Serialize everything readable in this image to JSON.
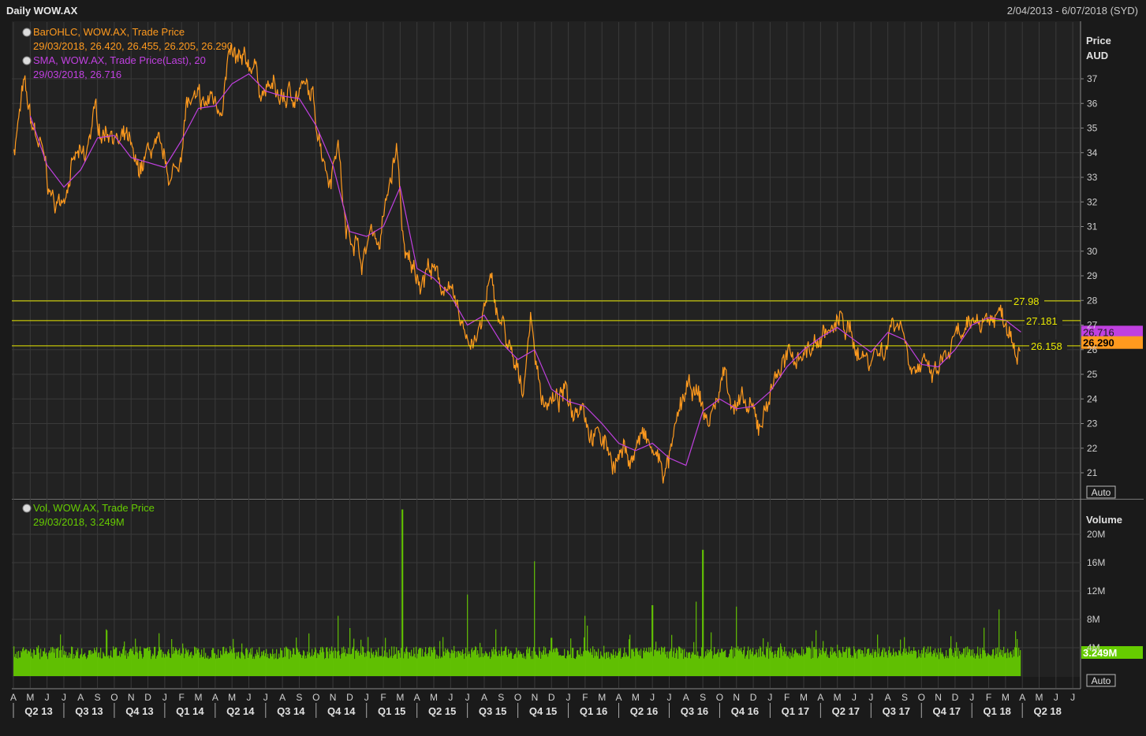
{
  "header": {
    "title": "Daily WOW.AX",
    "range": "2/04/2013 - 6/07/2018 (SYD)"
  },
  "colors": {
    "price": "#ff9a1e",
    "sma": "#c040e0",
    "volume": "#66cc00",
    "hline": "#e8e800",
    "background": "#222222",
    "grid": "#3a3a3a"
  },
  "price_panel": {
    "legend": [
      {
        "line1": "BarOHLC, WOW.AX, Trade Price",
        "line2": "29/03/2018, 26.420, 26.455, 26.205, 26.290",
        "color": "#ff9a1e"
      },
      {
        "line1": "SMA, WOW.AX, Trade Price(Last),  20",
        "line2": "29/03/2018, 26.716",
        "color": "#c040e0"
      }
    ],
    "axis_title": [
      "Price",
      "AUD"
    ],
    "auto_label": "Auto",
    "yticks": [
      21,
      22,
      23,
      24,
      25,
      26,
      27,
      28,
      29,
      30,
      31,
      32,
      33,
      34,
      35,
      36,
      37
    ],
    "hlines": [
      {
        "label": "27.98",
        "value": 27.98
      },
      {
        "label": "27.181",
        "value": 27.181
      },
      {
        "label": "26.158",
        "value": 26.158
      }
    ],
    "tags": [
      {
        "label": "26.716",
        "value": 26.716,
        "bg": "#c040e0",
        "fg": "#1a1a1a"
      },
      {
        "label": "26.290",
        "value": 26.29,
        "bg": "#ff9a1e",
        "fg": "#000000"
      }
    ]
  },
  "volume_panel": {
    "legend": [
      {
        "line1": "Vol, WOW.AX, Trade Price",
        "line2": "29/03/2018, 3.249M",
        "color": "#66cc00"
      }
    ],
    "axis_title": "Volume",
    "auto_label": "Auto",
    "yticks": [
      {
        "label": "4M",
        "value": 4
      },
      {
        "label": "8M",
        "value": 8
      },
      {
        "label": "12M",
        "value": 12
      },
      {
        "label": "16M",
        "value": 16
      },
      {
        "label": "20M",
        "value": 20
      }
    ],
    "tag": {
      "label": "3.249M",
      "value": 3.249
    }
  },
  "xaxis": {
    "months": [
      "A",
      "M",
      "J",
      "J",
      "A",
      "S",
      "O",
      "N",
      "D",
      "J",
      "F",
      "M",
      "A",
      "M",
      "J",
      "J",
      "A",
      "S",
      "O",
      "N",
      "D",
      "J",
      "F",
      "M",
      "A",
      "M",
      "J",
      "J",
      "A",
      "S",
      "O",
      "N",
      "D",
      "J",
      "F",
      "M",
      "A",
      "M",
      "J",
      "J",
      "A",
      "S",
      "O",
      "N",
      "D",
      "J",
      "F",
      "M",
      "A",
      "M",
      "J",
      "J",
      "A",
      "S",
      "O",
      "N",
      "D",
      "J",
      "F",
      "M",
      "A",
      "M",
      "J",
      "J"
    ],
    "quarters": [
      "Q2 13",
      "Q3 13",
      "Q4 13",
      "Q1 14",
      "Q2 14",
      "Q3 14",
      "Q4 14",
      "Q1 15",
      "Q2 15",
      "Q3 15",
      "Q4 15",
      "Q1 16",
      "Q2 16",
      "Q3 16",
      "Q4 16",
      "Q1 17",
      "Q2 17",
      "Q3 17",
      "Q4 17",
      "Q1 18",
      "Q2 18"
    ]
  },
  "chart_data": {
    "type": "line",
    "ticker": "WOW.AX",
    "x_start": "2013-04",
    "x_end": "2018-07",
    "ylim": [
      20.4,
      38.5
    ],
    "series": [
      {
        "name": "BarOHLC, WOW.AX, Trade Price",
        "x": [
          "2013-04-02",
          "2013-04-20",
          "2013-05-01",
          "2013-05-20",
          "2013-06-10",
          "2013-06-25",
          "2013-07-10",
          "2013-07-25",
          "2013-08-10",
          "2013-08-25",
          "2013-09-10",
          "2013-09-25",
          "2013-10-10",
          "2013-10-25",
          "2013-11-10",
          "2013-11-25",
          "2013-12-10",
          "2013-12-25",
          "2014-01-10",
          "2014-01-25",
          "2014-02-10",
          "2014-02-25",
          "2014-03-10",
          "2014-03-25",
          "2014-04-10",
          "2014-04-25",
          "2014-05-10",
          "2014-05-25",
          "2014-06-10",
          "2014-06-25",
          "2014-07-10",
          "2014-07-25",
          "2014-08-10",
          "2014-08-25",
          "2014-09-10",
          "2014-09-25",
          "2014-10-10",
          "2014-10-25",
          "2014-11-10",
          "2014-11-25",
          "2014-12-10",
          "2014-12-25",
          "2015-01-10",
          "2015-01-25",
          "2015-02-10",
          "2015-02-25",
          "2015-03-10",
          "2015-03-25",
          "2015-04-10",
          "2015-04-25",
          "2015-05-10",
          "2015-05-25",
          "2015-06-10",
          "2015-06-25",
          "2015-07-10",
          "2015-07-25",
          "2015-08-10",
          "2015-08-25",
          "2015-09-10",
          "2015-09-25",
          "2015-10-10",
          "2015-10-25",
          "2015-11-10",
          "2015-11-25",
          "2015-12-10",
          "2015-12-25",
          "2016-01-10",
          "2016-01-25",
          "2016-02-10",
          "2016-02-25",
          "2016-03-10",
          "2016-03-25",
          "2016-04-10",
          "2016-04-25",
          "2016-05-10",
          "2016-05-25",
          "2016-06-10",
          "2016-06-25",
          "2016-07-10",
          "2016-07-25",
          "2016-08-10",
          "2016-08-25",
          "2016-09-10",
          "2016-09-25",
          "2016-10-10",
          "2016-10-25",
          "2016-11-10",
          "2016-11-25",
          "2016-12-10",
          "2016-12-25",
          "2017-01-10",
          "2017-01-25",
          "2017-02-10",
          "2017-02-25",
          "2017-03-10",
          "2017-03-25",
          "2017-04-10",
          "2017-04-25",
          "2017-05-10",
          "2017-05-25",
          "2017-06-10",
          "2017-06-25",
          "2017-07-10",
          "2017-07-25",
          "2017-08-10",
          "2017-08-25",
          "2017-09-10",
          "2017-09-25",
          "2017-10-10",
          "2017-10-25",
          "2017-11-10",
          "2017-11-25",
          "2017-12-10",
          "2017-12-25",
          "2018-01-10",
          "2018-01-25",
          "2018-02-10",
          "2018-02-25",
          "2018-03-10",
          "2018-03-29"
        ],
        "values": [
          34.2,
          36.6,
          35.2,
          34.1,
          32.0,
          31.9,
          33.2,
          33.8,
          33.4,
          35.6,
          34.8,
          35.2,
          34.3,
          34.4,
          33.0,
          33.6,
          34.2,
          33.6,
          33.0,
          33.3,
          36.0,
          35.9,
          35.7,
          36.2,
          35.9,
          37.8,
          37.5,
          37.3,
          37.7,
          36.5,
          36.6,
          36.2,
          36.2,
          36.5,
          36.6,
          36.0,
          34.5,
          33.1,
          34.7,
          30.6,
          30.8,
          29.5,
          31.0,
          30.4,
          32.4,
          34.1,
          29.5,
          29.2,
          29.0,
          29.5,
          28.6,
          28.7,
          27.4,
          26.8,
          26.5,
          26.7,
          28.7,
          27.5,
          26.5,
          25.0,
          24.5,
          27.5,
          24.3,
          24.0,
          23.8,
          24.2,
          23.6,
          24.3,
          22.9,
          22.5,
          22.1,
          21.5,
          21.9,
          21.6,
          22.5,
          22.0,
          21.5,
          21.0,
          22.2,
          23.9,
          24.3,
          24.0,
          23.0,
          23.8,
          25.2,
          24.0,
          23.6,
          23.4,
          22.8,
          23.8,
          25.0,
          25.5,
          25.5,
          26.0,
          26.0,
          26.3,
          26.8,
          26.7,
          27.2,
          26.5,
          26.0,
          25.6,
          26.0,
          26.0,
          27.3,
          27.2,
          25.8,
          25.4,
          25.0,
          24.8,
          25.5,
          26.0,
          26.4,
          26.5,
          27.3,
          27.3,
          27.4,
          27.5,
          27.0,
          26.29
        ]
      },
      {
        "name": "SMA, WOW.AX, Trade Price(Last),  20",
        "x": [
          "2013-05-01",
          "2013-06-01",
          "2013-07-01",
          "2013-08-01",
          "2013-09-01",
          "2013-10-01",
          "2013-11-01",
          "2013-12-01",
          "2014-01-01",
          "2014-02-01",
          "2014-03-01",
          "2014-04-01",
          "2014-05-01",
          "2014-06-01",
          "2014-07-01",
          "2014-08-01",
          "2014-09-01",
          "2014-10-01",
          "2014-11-01",
          "2014-12-01",
          "2015-01-01",
          "2015-02-01",
          "2015-03-01",
          "2015-04-01",
          "2015-05-01",
          "2015-06-01",
          "2015-07-01",
          "2015-08-01",
          "2015-09-01",
          "2015-10-01",
          "2015-11-01",
          "2015-12-01",
          "2016-01-01",
          "2016-02-01",
          "2016-03-01",
          "2016-04-01",
          "2016-05-01",
          "2016-06-01",
          "2016-07-01",
          "2016-08-01",
          "2016-09-01",
          "2016-10-01",
          "2016-11-01",
          "2016-12-01",
          "2017-01-01",
          "2017-02-01",
          "2017-03-01",
          "2017-04-01",
          "2017-05-01",
          "2017-06-01",
          "2017-07-01",
          "2017-08-01",
          "2017-09-01",
          "2017-10-01",
          "2017-11-01",
          "2017-12-01",
          "2018-01-01",
          "2018-02-01",
          "2018-03-01",
          "2018-03-29"
        ],
        "values": [
          35.5,
          33.5,
          32.6,
          33.3,
          34.6,
          34.7,
          33.8,
          33.6,
          33.4,
          34.5,
          35.8,
          35.9,
          36.8,
          37.2,
          36.5,
          36.3,
          36.2,
          35.1,
          33.5,
          30.8,
          30.6,
          31.0,
          32.6,
          29.3,
          28.9,
          28.2,
          27.0,
          27.4,
          26.3,
          25.6,
          26.0,
          24.4,
          23.9,
          23.7,
          23.0,
          22.2,
          21.9,
          22.2,
          21.6,
          21.3,
          23.5,
          24.0,
          23.6,
          23.7,
          24.3,
          25.3,
          26.0,
          26.5,
          26.9,
          26.4,
          25.9,
          26.7,
          26.4,
          25.4,
          25.3,
          26.0,
          27.0,
          27.3,
          27.2,
          26.716
        ]
      },
      {
        "name": "Vol, WOW.AX, Trade Price",
        "x": [
          "2013-06-01",
          "2013-09-01",
          "2014-01-01",
          "2014-04-01",
          "2014-07-01",
          "2014-10-01",
          "2014-11-10",
          "2015-01-01",
          "2015-03-05",
          "2015-05-01",
          "2015-07-01",
          "2015-08-01",
          "2015-10-01",
          "2015-11-01",
          "2015-12-01",
          "2016-02-01",
          "2016-04-01",
          "2016-05-01",
          "2016-06-01",
          "2016-07-01",
          "2016-08-20",
          "2016-09-01",
          "2016-11-01",
          "2016-12-01",
          "2017-03-01",
          "2017-06-01",
          "2017-09-01",
          "2017-12-01",
          "2018-02-20",
          "2018-03-29"
        ],
        "values": [
          2.8,
          2.5,
          2.6,
          3.2,
          2.7,
          2.9,
          8.5,
          2.8,
          23.5,
          3.5,
          11.5,
          3.2,
          3.5,
          16.2,
          5.4,
          8.5,
          3.5,
          4.0,
          10.0,
          3.4,
          10.5,
          17.8,
          9.8,
          4.0,
          3.8,
          4.2,
          5.5,
          4.0,
          9.4,
          3.249
        ]
      }
    ]
  }
}
